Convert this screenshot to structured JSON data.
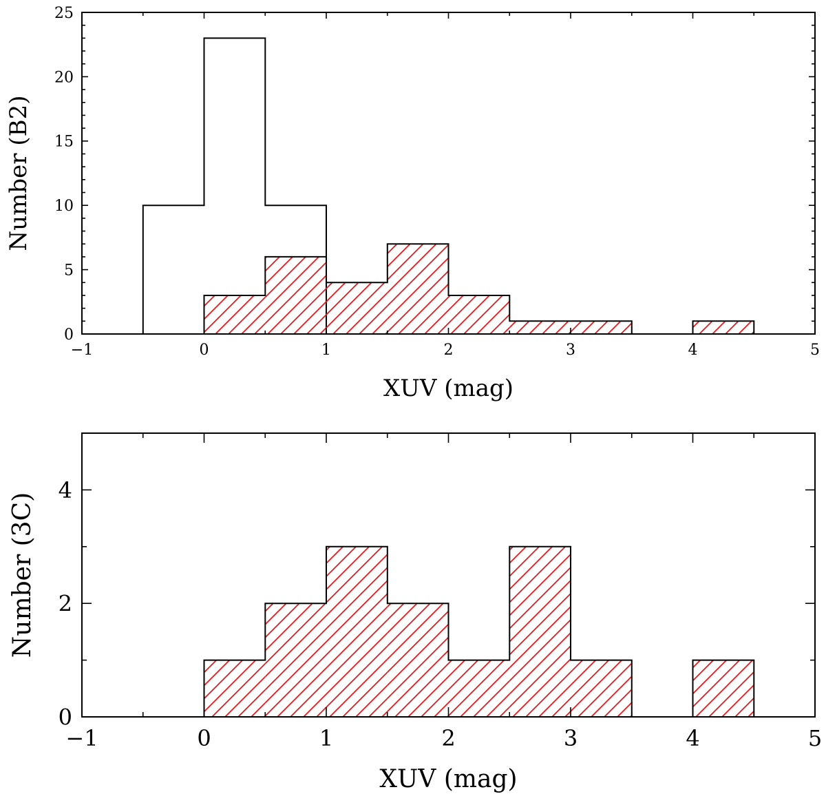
{
  "chart_data": [
    {
      "type": "bar",
      "xlabel": "XUV (mag)",
      "ylabel": "Number (B2)",
      "xlim": [
        -1,
        5
      ],
      "ylim": [
        0,
        25
      ],
      "xticks": [
        -1,
        0,
        1,
        2,
        3,
        4,
        5
      ],
      "yticks": [
        0,
        5,
        10,
        15,
        20,
        25
      ],
      "bin_width": 0.5,
      "series": [
        {
          "style": "open-outline",
          "color": "#000000",
          "bins": [
            {
              "x0": -0.5,
              "value": 10
            },
            {
              "x0": 0.0,
              "value": 23
            },
            {
              "x0": 0.5,
              "value": 10
            }
          ]
        },
        {
          "style": "hatched",
          "color": "#e41a1c",
          "bins": [
            {
              "x0": 0.0,
              "value": 3
            },
            {
              "x0": 0.5,
              "value": 6
            },
            {
              "x0": 1.0,
              "value": 4
            },
            {
              "x0": 1.5,
              "value": 7
            },
            {
              "x0": 2.0,
              "value": 3
            },
            {
              "x0": 2.5,
              "value": 1
            },
            {
              "x0": 3.0,
              "value": 1
            },
            {
              "x0": 4.0,
              "value": 1
            }
          ]
        }
      ]
    },
    {
      "type": "bar",
      "xlabel": "XUV (mag)",
      "ylabel": "Number (3C)",
      "xlim": [
        -1,
        5
      ],
      "ylim": [
        0,
        5
      ],
      "xticks": [
        -1,
        0,
        1,
        2,
        3,
        4,
        5
      ],
      "yticks": [
        0,
        2,
        4
      ],
      "bin_width": 0.5,
      "series": [
        {
          "style": "hatched",
          "color": "#e41a1c",
          "bins": [
            {
              "x0": 0.0,
              "value": 1
            },
            {
              "x0": 0.5,
              "value": 2
            },
            {
              "x0": 1.0,
              "value": 3
            },
            {
              "x0": 1.5,
              "value": 2
            },
            {
              "x0": 2.0,
              "value": 1
            },
            {
              "x0": 2.5,
              "value": 3
            },
            {
              "x0": 3.0,
              "value": 1
            },
            {
              "x0": 4.0,
              "value": 1
            }
          ]
        }
      ]
    }
  ]
}
